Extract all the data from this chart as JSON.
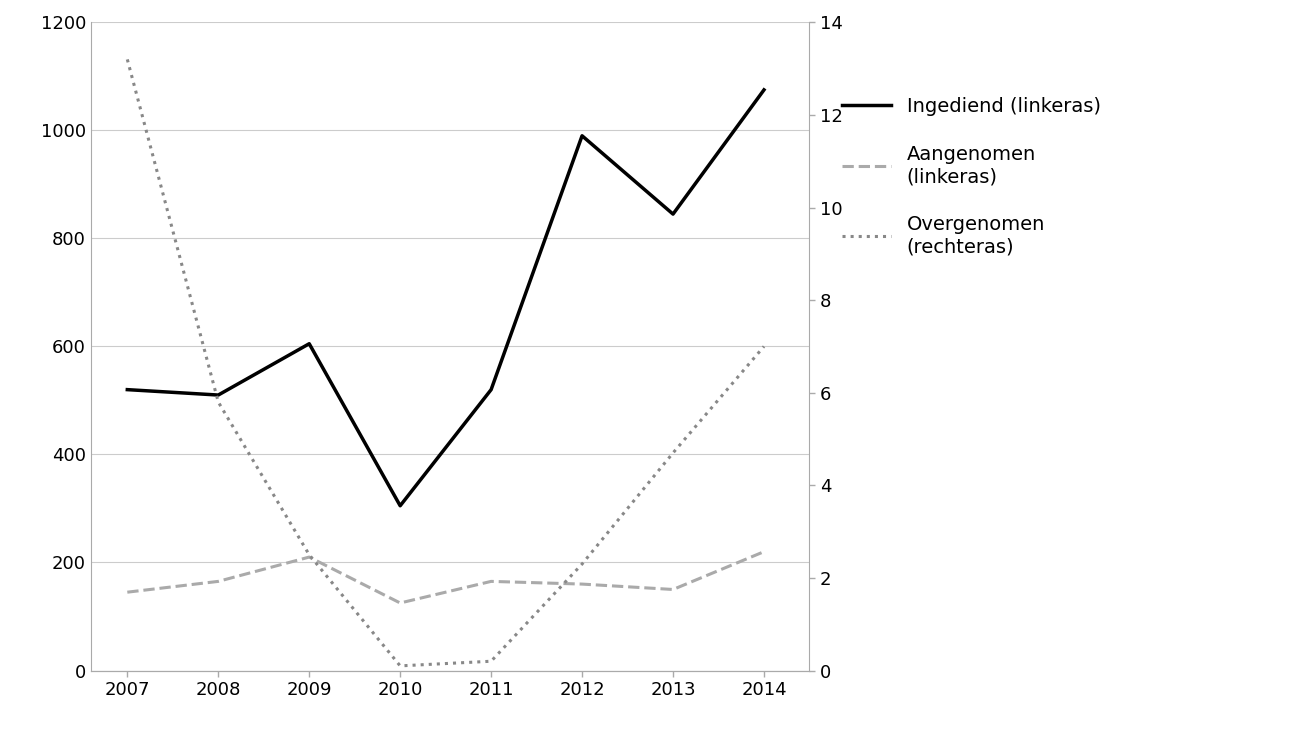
{
  "years": [
    2007,
    2008,
    2009,
    2010,
    2011,
    2012,
    2013,
    2014
  ],
  "ingediend": [
    520,
    510,
    605,
    305,
    520,
    990,
    845,
    1075
  ],
  "aangenomen": [
    145,
    165,
    210,
    125,
    165,
    160,
    150,
    220
  ],
  "overgenomen": [
    13.2,
    5.8,
    2.5,
    0.1,
    0.2,
    2.3,
    4.7,
    7.0
  ],
  "left_ylim": [
    0,
    1200
  ],
  "right_ylim": [
    0,
    14
  ],
  "left_yticks": [
    0,
    200,
    400,
    600,
    800,
    1000,
    1200
  ],
  "right_yticks": [
    0,
    2,
    4,
    6,
    8,
    10,
    12,
    14
  ],
  "legend_ingediend": "Ingediend (linkeras)",
  "legend_aangenomen": "Aangenomen\n(linkeras)",
  "legend_overgenomen": "Overgenomen\n(rechteras)",
  "line_color_ingediend": "#000000",
  "line_color_aangenomen": "#aaaaaa",
  "line_color_overgenomen": "#888888",
  "background_color": "#ffffff",
  "grid_color": "#cccccc",
  "spine_color": "#aaaaaa"
}
